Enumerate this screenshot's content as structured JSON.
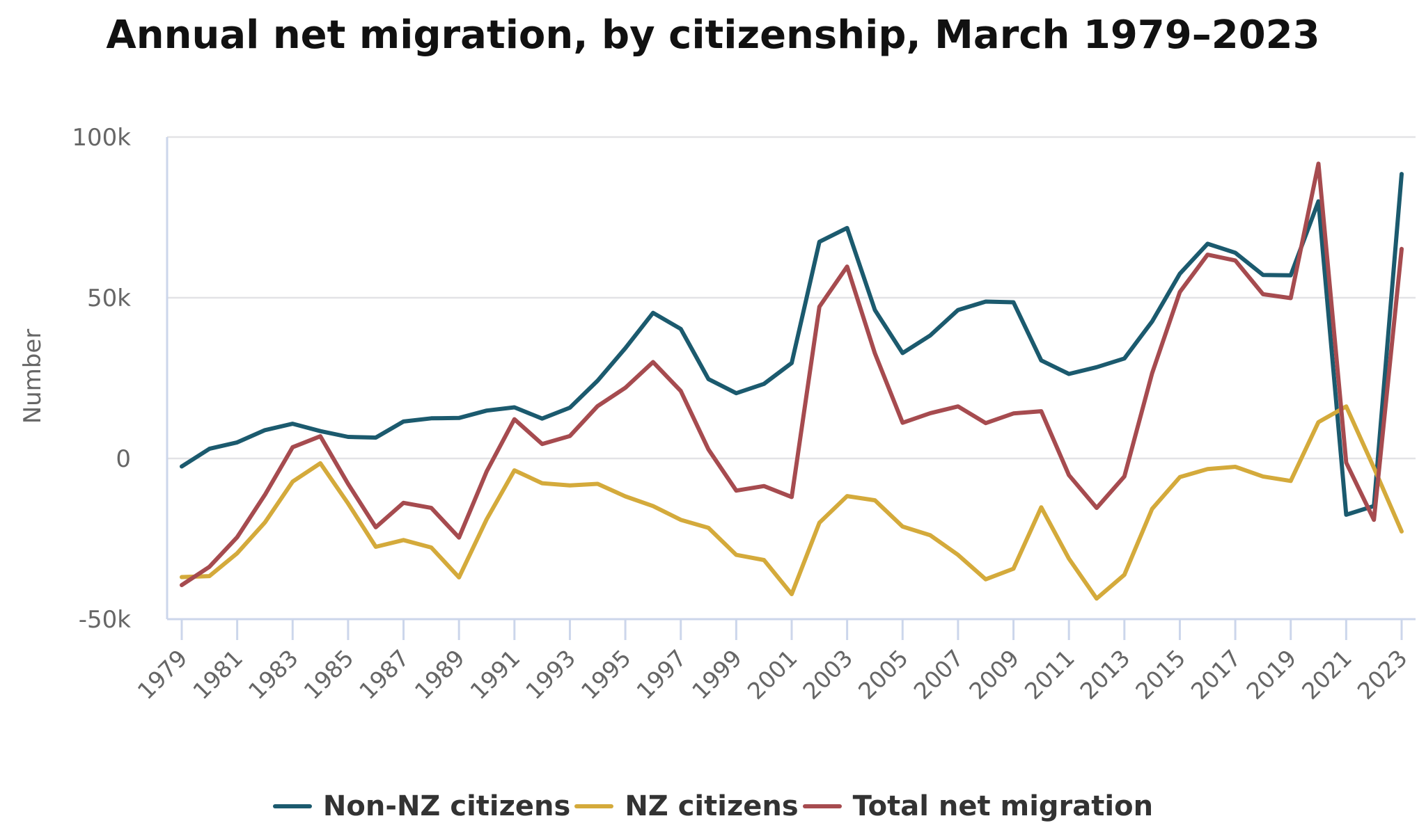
{
  "chart_data": {
    "type": "line",
    "title": "Annual net migration, by citizenship, March 1979–2023",
    "xlabel": "",
    "ylabel": "Number",
    "ylim": [
      -50000,
      100000
    ],
    "yticks": [
      {
        "value": 100000,
        "label": "100k"
      },
      {
        "value": 50000,
        "label": "50k"
      },
      {
        "value": 0,
        "label": "0"
      },
      {
        "value": -50000,
        "label": "-50k"
      }
    ],
    "x": [
      1979,
      1980,
      1981,
      1982,
      1983,
      1984,
      1985,
      1986,
      1987,
      1988,
      1989,
      1990,
      1991,
      1992,
      1993,
      1994,
      1995,
      1996,
      1997,
      1998,
      1999,
      2000,
      2001,
      2002,
      2003,
      2004,
      2005,
      2006,
      2007,
      2008,
      2009,
      2010,
      2011,
      2012,
      2013,
      2014,
      2015,
      2016,
      2017,
      2018,
      2019,
      2020,
      2021,
      2022,
      2023
    ],
    "xtick_labels": [
      "1979",
      "1981",
      "1983",
      "1985",
      "1987",
      "1989",
      "1991",
      "1993",
      "1995",
      "1997",
      "1999",
      "2001",
      "2003",
      "2005",
      "2007",
      "2009",
      "2011",
      "2013",
      "2015",
      "2017",
      "2019",
      "2021",
      "2023"
    ],
    "grid": true,
    "legend": "bottom",
    "series": [
      {
        "name": "Non-NZ citizens",
        "color": "#1b5a6e",
        "values": [
          -2500,
          3000,
          5000,
          8800,
          10800,
          8500,
          6700,
          6500,
          11500,
          12500,
          12600,
          14900,
          15900,
          12400,
          15800,
          24200,
          34300,
          45300,
          40300,
          24700,
          20300,
          23200,
          29700,
          67400,
          71700,
          46200,
          32800,
          38300,
          46200,
          48800,
          48600,
          30500,
          26300,
          28400,
          31100,
          42600,
          57500,
          66800,
          64000,
          57100,
          57000,
          80000,
          -17500,
          -14800,
          88500
        ]
      },
      {
        "name": "NZ citizens",
        "color": "#d4aa3b",
        "values": [
          -36900,
          -36600,
          -29500,
          -19900,
          -7200,
          -1500,
          -14000,
          -27500,
          -25400,
          -27700,
          -37000,
          -18900,
          -3700,
          -7700,
          -8400,
          -7900,
          -11800,
          -14800,
          -19100,
          -21600,
          -30000,
          -31600,
          -42200,
          -20000,
          -11700,
          -13000,
          -21200,
          -23900,
          -30000,
          -37600,
          -34300,
          -15200,
          -31200,
          -43600,
          -36200,
          -15700,
          -5800,
          -3300,
          -2600,
          -5600,
          -7000,
          11300,
          16200,
          -2900,
          -22700
        ]
      },
      {
        "name": "Total net migration",
        "color": "#a64b4f",
        "values": [
          -39400,
          -33700,
          -24500,
          -11300,
          3500,
          6900,
          -7900,
          -21400,
          -13800,
          -15400,
          -24600,
          -4000,
          12200,
          4500,
          7000,
          16300,
          22000,
          30000,
          21000,
          2800,
          -10000,
          -8600,
          -12000,
          47200,
          59700,
          32700,
          11100,
          14100,
          16200,
          11000,
          14000,
          14700,
          -5200,
          -15400,
          -5600,
          26500,
          51800,
          63400,
          61600,
          51100,
          49900,
          91700,
          -1300,
          -19100,
          65200
        ]
      }
    ]
  }
}
